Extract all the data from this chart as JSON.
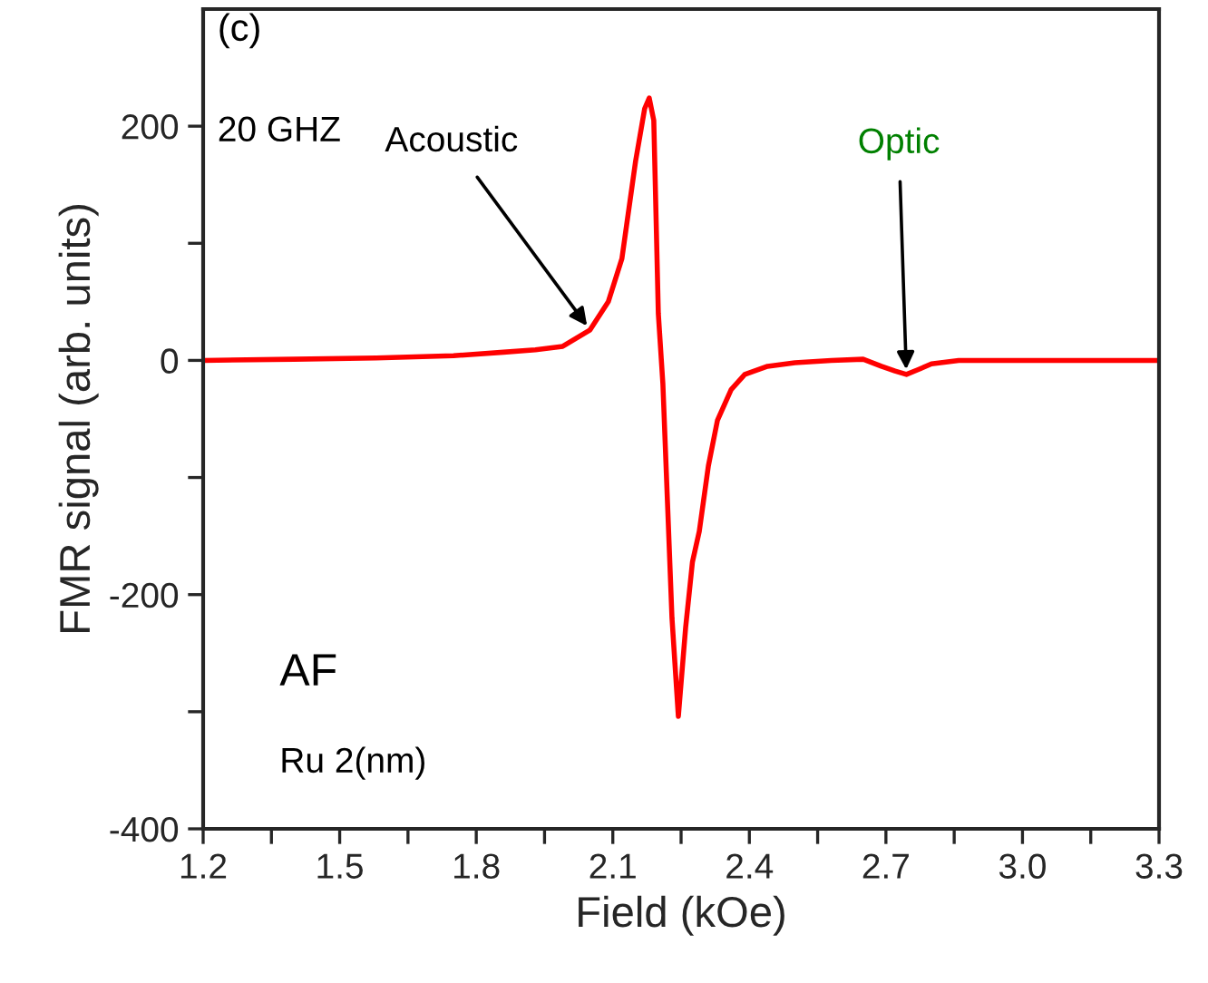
{
  "chart_data": {
    "type": "line",
    "xlabel": "Field (kOe)",
    "ylabel": "FMR signal (arb. units)",
    "x": [
      1.2,
      1.4,
      1.58,
      1.75,
      1.86,
      1.93,
      1.99,
      2.05,
      2.09,
      2.12,
      2.15,
      2.17,
      2.18,
      2.19,
      2.2,
      2.21,
      2.22,
      2.23,
      2.244,
      2.26,
      2.275,
      2.29,
      2.31,
      2.33,
      2.36,
      2.39,
      2.44,
      2.5,
      2.58,
      2.65,
      2.69,
      2.72,
      2.745,
      2.77,
      2.8,
      2.86,
      3.0,
      3.15,
      3.3
    ],
    "series": [
      {
        "color": "#ff0000",
        "values": [
          0,
          1,
          2,
          4,
          7,
          9,
          12,
          26,
          50,
          87,
          170,
          215,
          224,
          205,
          40,
          -20,
          -120,
          -220,
          -304,
          -228,
          -172,
          -146,
          -90,
          -51,
          -25,
          -12,
          -5,
          -2,
          0,
          1,
          -5,
          -9,
          -12,
          -8,
          -3,
          0,
          0,
          0,
          0
        ]
      }
    ],
    "xlim": [
      1.2,
      3.3
    ],
    "ylim": [
      -400,
      300
    ],
    "xticks": [
      1.2,
      {
        "value": 1.35,
        "label": null
      },
      1.5,
      {
        "value": 1.65,
        "label": null
      },
      1.8,
      {
        "value": 1.95,
        "label": null
      },
      2.1,
      {
        "value": 2.25,
        "label": null
      },
      2.4,
      {
        "value": 2.55,
        "label": null
      },
      2.7,
      {
        "value": 2.85,
        "label": null
      },
      {
        "value": 3.0,
        "label": "3.0"
      },
      {
        "value": 3.15,
        "label": null
      },
      3.3
    ],
    "yticks": [
      -400,
      {
        "value": -300,
        "label": null
      },
      -200,
      {
        "value": -100,
        "label": null
      },
      0,
      {
        "value": 100,
        "label": null
      },
      200
    ],
    "grid": false,
    "legend": false,
    "marker": "none",
    "line_style": "solid",
    "annotations": [
      "(c)",
      "20 GHZ",
      {
        "text": "Acoustic",
        "x": 2.05,
        "y": 26
      },
      {
        "text": "Optic",
        "x": 2.745,
        "y": -12
      },
      "AF",
      "Ru 2(nm)"
    ]
  }
}
